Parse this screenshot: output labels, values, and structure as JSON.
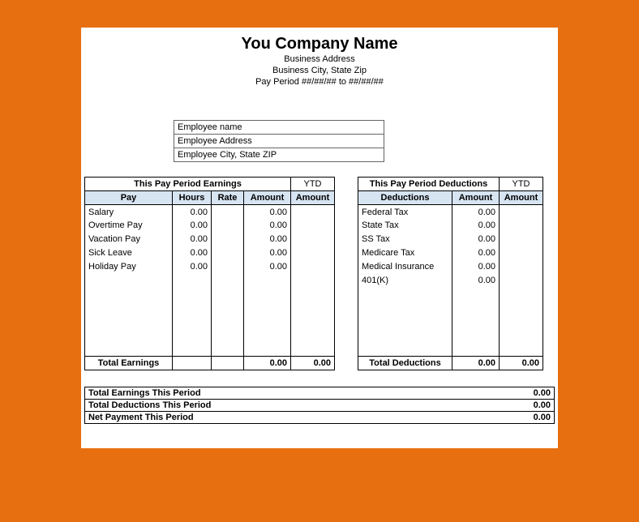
{
  "header": {
    "company": "You Company Name",
    "address": "Business Address",
    "city_state_zip": "Business City, State  Zip",
    "period": "Pay Period ##/##/## to ##/##/##"
  },
  "employee": {
    "name": "Employee name",
    "address": "Employee Address",
    "city_state_zip": "Employee City, State  ZIP"
  },
  "earnings": {
    "section_title": "This Pay Period Earnings",
    "ytd_label": "YTD",
    "cols": {
      "pay": "Pay",
      "hours": "Hours",
      "rate": "Rate",
      "amount": "Amount",
      "ytd_amount": "Amount"
    },
    "rows": [
      {
        "pay": "Salary",
        "hours": "0.00",
        "rate": "",
        "amount": "0.00",
        "ytd": ""
      },
      {
        "pay": "Overtime Pay",
        "hours": "0.00",
        "rate": "",
        "amount": "0.00",
        "ytd": ""
      },
      {
        "pay": "Vacation Pay",
        "hours": "0.00",
        "rate": "",
        "amount": "0.00",
        "ytd": ""
      },
      {
        "pay": "Sick Leave",
        "hours": "0.00",
        "rate": "",
        "amount": "0.00",
        "ytd": ""
      },
      {
        "pay": "Holiday Pay",
        "hours": "0.00",
        "rate": "",
        "amount": "0.00",
        "ytd": ""
      },
      {
        "pay": "",
        "hours": "",
        "rate": "",
        "amount": "",
        "ytd": ""
      },
      {
        "pay": "",
        "hours": "",
        "rate": "",
        "amount": "",
        "ytd": ""
      },
      {
        "pay": "",
        "hours": "",
        "rate": "",
        "amount": "",
        "ytd": ""
      },
      {
        "pay": "",
        "hours": "",
        "rate": "",
        "amount": "",
        "ytd": ""
      },
      {
        "pay": "",
        "hours": "",
        "rate": "",
        "amount": "",
        "ytd": ""
      },
      {
        "pay": "",
        "hours": "",
        "rate": "",
        "amount": "",
        "ytd": ""
      }
    ],
    "total": {
      "label": "Total Earnings",
      "amount": "0.00",
      "ytd": "0.00"
    }
  },
  "deductions": {
    "section_title": "This Pay Period Deductions",
    "ytd_label": "YTD",
    "cols": {
      "deductions": "Deductions",
      "amount": "Amount",
      "ytd_amount": "Amount"
    },
    "rows": [
      {
        "name": "Federal Tax",
        "amount": "0.00",
        "ytd": ""
      },
      {
        "name": "State Tax",
        "amount": "0.00",
        "ytd": ""
      },
      {
        "name": "SS Tax",
        "amount": "0.00",
        "ytd": ""
      },
      {
        "name": "Medicare Tax",
        "amount": "0.00",
        "ytd": ""
      },
      {
        "name": "Medical Insurance",
        "amount": "0.00",
        "ytd": ""
      },
      {
        "name": "401(K)",
        "amount": "0.00",
        "ytd": ""
      },
      {
        "name": "",
        "amount": "",
        "ytd": ""
      },
      {
        "name": "",
        "amount": "",
        "ytd": ""
      },
      {
        "name": "",
        "amount": "",
        "ytd": ""
      },
      {
        "name": "",
        "amount": "",
        "ytd": ""
      },
      {
        "name": "",
        "amount": "",
        "ytd": ""
      }
    ],
    "total": {
      "label": "Total Deductions",
      "amount": "0.00",
      "ytd": "0.00"
    }
  },
  "summary": {
    "rows": [
      {
        "label": "Total Earnings This Period",
        "value": "0.00"
      },
      {
        "label": "Total Deductions This Period",
        "value": "0.00"
      },
      {
        "label": "Net Payment This Period",
        "value": "0.00"
      }
    ]
  },
  "widths": {
    "earn": {
      "pay": 108,
      "hours": 48,
      "rate": 40,
      "amount": 58,
      "ytd": 54
    },
    "ded": {
      "name": 116,
      "amount": 58,
      "ytd": 54
    }
  },
  "colors": {
    "page_bg": "#e86f0f",
    "sheet_bg": "#ffffff",
    "header_shade": "#d7e4f2",
    "border": "#000000"
  }
}
